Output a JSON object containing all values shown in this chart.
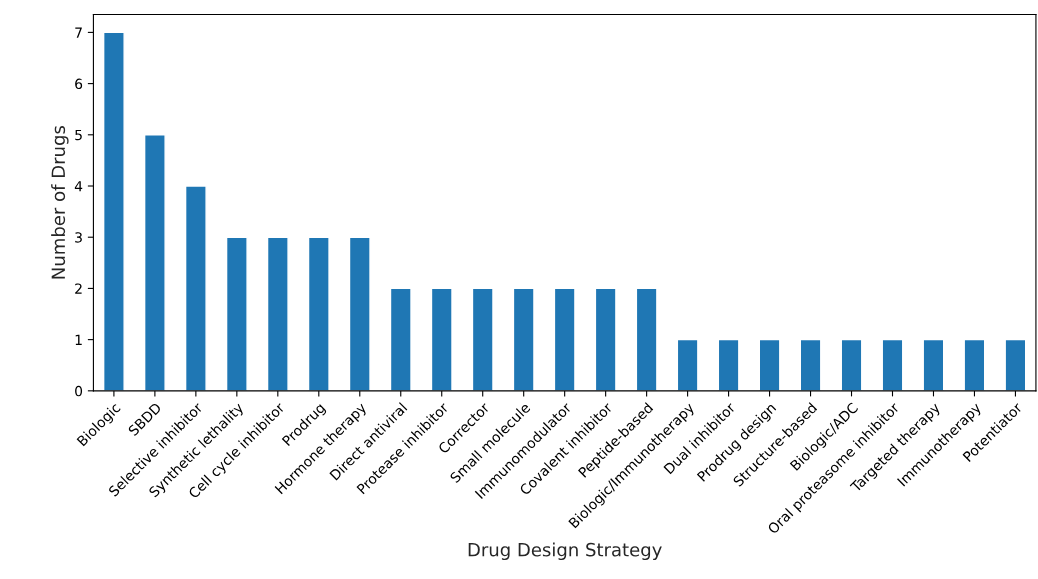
{
  "chart_data": {
    "type": "bar",
    "xlabel": "Drug Design Strategy",
    "ylabel": "Number of Drugs",
    "categories": [
      "Biologic",
      "SBDD",
      "Selective inhibitor",
      "Synthetic lethality",
      "Cell cycle inhibitor",
      "Prodrug",
      "Hormone therapy",
      "Direct antiviral",
      "Protease inhibitor",
      "Corrector",
      "Small molecule",
      "Immunomodulator",
      "Covalent inhibitor",
      "Peptide-based",
      "Biologic/Immunotherapy",
      "Dual inhibitor",
      "Prodrug design",
      "Structure-based",
      "Biologic/ADC",
      "Oral proteasome inhibitor",
      "Targeted therapy",
      "Immunotherapy",
      "Potentiator"
    ],
    "values": [
      7,
      5,
      4,
      3,
      3,
      3,
      3,
      2,
      2,
      2,
      2,
      2,
      2,
      2,
      1,
      1,
      1,
      1,
      1,
      1,
      1,
      1,
      1
    ],
    "color": "#1f77b4",
    "ylim": [
      0,
      7.35
    ],
    "yticks": [
      0,
      1,
      2,
      3,
      4,
      5,
      6,
      7
    ],
    "grid": false
  }
}
